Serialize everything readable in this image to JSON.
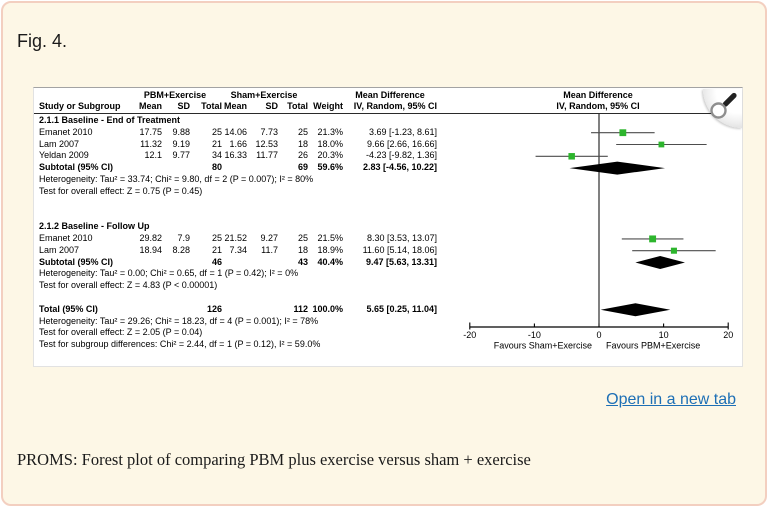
{
  "page": {
    "fig_label": "Fig. 4.",
    "open_link": "Open in a new tab",
    "caption": "PROMS: Forest plot of comparing PBM plus exercise versus sham + exercise"
  },
  "colors": {
    "page_bg": "#fdf7e6",
    "page_border": "#f3cfc0",
    "link_blue": "#1d6fb5",
    "marker_green": "#2db52d",
    "diamond_black": "#000000",
    "ci_line_gray": "#4d4d4d"
  },
  "chart_data": {
    "type": "forest_plot",
    "effect_measure": "Mean Difference",
    "headers": {
      "group1": "PBM+Exercise",
      "group2": "Sham+Exercise",
      "mean_difference": "Mean Difference",
      "study": "Study or Subgroup",
      "mean": "Mean",
      "sd": "SD",
      "total": "Total",
      "weight": "Weight",
      "ci_method": "IV, Random, 95% CI"
    },
    "axis": {
      "min": -20,
      "max": 20,
      "ticks": [
        -20,
        -10,
        0,
        10,
        20
      ],
      "tick_labels": [
        "-20",
        "-10",
        "0",
        "10",
        "20"
      ],
      "favours_left": "Favours Sham+Exercise",
      "favours_right": "Favours PBM+Exercise"
    },
    "rows": [
      {
        "type": "section",
        "label": "2.1.1 Baseline - End of Treatment"
      },
      {
        "type": "study",
        "label": "Emanet 2010",
        "mean1": "17.75",
        "sd1": "9.88",
        "total1": "25",
        "mean2": "14.06",
        "sd2": "7.73",
        "total2": "25",
        "weight": "21.3%",
        "ci_text": "3.69 [-1.23, 8.61]",
        "est": 3.69,
        "lo": -1.23,
        "hi": 8.61,
        "weight_val": 21.3
      },
      {
        "type": "study",
        "label": "Lam 2007",
        "mean1": "11.32",
        "sd1": "9.19",
        "total1": "21",
        "mean2": "1.66",
        "sd2": "12.53",
        "total2": "18",
        "weight": "18.0%",
        "ci_text": "9.66 [2.66, 16.66]",
        "est": 9.66,
        "lo": 2.66,
        "hi": 16.66,
        "weight_val": 18.0
      },
      {
        "type": "study",
        "label": "Yeldan 2009",
        "mean1": "12.1",
        "sd1": "9.77",
        "total1": "34",
        "mean2": "16.33",
        "sd2": "11.77",
        "total2": "26",
        "weight": "20.3%",
        "ci_text": "-4.23 [-9.82, 1.36]",
        "est": -4.23,
        "lo": -9.82,
        "hi": 1.36,
        "weight_val": 20.3
      },
      {
        "type": "subtotal",
        "label": "Subtotal (95% CI)",
        "total1": "80",
        "total2": "69",
        "weight": "59.6%",
        "ci_text": "2.83 [-4.56, 10.22]",
        "est": 2.83,
        "lo": -4.56,
        "hi": 10.22
      },
      {
        "type": "stat",
        "label": "Heterogeneity: Tau² = 33.74; Chi² = 9.80, df = 2 (P = 0.007); I² = 80%"
      },
      {
        "type": "stat",
        "label": "Test for overall effect: Z = 0.75 (P = 0.45)"
      },
      {
        "type": "spacer"
      },
      {
        "type": "spacer"
      },
      {
        "type": "section",
        "label": "2.1.2 Baseline - Follow Up"
      },
      {
        "type": "study",
        "label": "Emanet 2010",
        "mean1": "29.82",
        "sd1": "7.9",
        "total1": "25",
        "mean2": "21.52",
        "sd2": "9.27",
        "total2": "25",
        "weight": "21.5%",
        "ci_text": "8.30 [3.53, 13.07]",
        "est": 8.3,
        "lo": 3.53,
        "hi": 13.07,
        "weight_val": 21.5
      },
      {
        "type": "study",
        "label": "Lam 2007",
        "mean1": "18.94",
        "sd1": "8.28",
        "total1": "21",
        "mean2": "7.34",
        "sd2": "11.7",
        "total2": "18",
        "weight": "18.9%",
        "ci_text": "11.60 [5.14, 18.06]",
        "est": 11.6,
        "lo": 5.14,
        "hi": 18.06,
        "weight_val": 18.9
      },
      {
        "type": "subtotal",
        "label": "Subtotal (95% CI)",
        "total1": "46",
        "total2": "43",
        "weight": "40.4%",
        "ci_text": "9.47 [5.63, 13.31]",
        "est": 9.47,
        "lo": 5.63,
        "hi": 13.31
      },
      {
        "type": "stat",
        "label": "Heterogeneity: Tau² = 0.00; Chi² = 0.65, df = 1 (P = 0.42); I² = 0%"
      },
      {
        "type": "stat",
        "label": "Test for overall effect: Z = 4.83 (P < 0.00001)"
      },
      {
        "type": "spacer"
      },
      {
        "type": "total",
        "label": "Total (95% CI)",
        "total1": "126",
        "total2": "112",
        "weight": "100.0%",
        "ci_text": "5.65 [0.25, 11.04]",
        "est": 5.65,
        "lo": 0.25,
        "hi": 11.04
      },
      {
        "type": "stat",
        "label": "Heterogeneity: Tau² = 29.26; Chi² = 18.23, df = 4 (P = 0.001); I² = 78%"
      },
      {
        "type": "stat",
        "label": "Test for overall effect: Z = 2.05 (P = 0.04)"
      },
      {
        "type": "stat",
        "label": "Test for subgroup differences: Chi² = 2.44, df = 1 (P = 0.12), I² = 59.0%"
      }
    ]
  }
}
